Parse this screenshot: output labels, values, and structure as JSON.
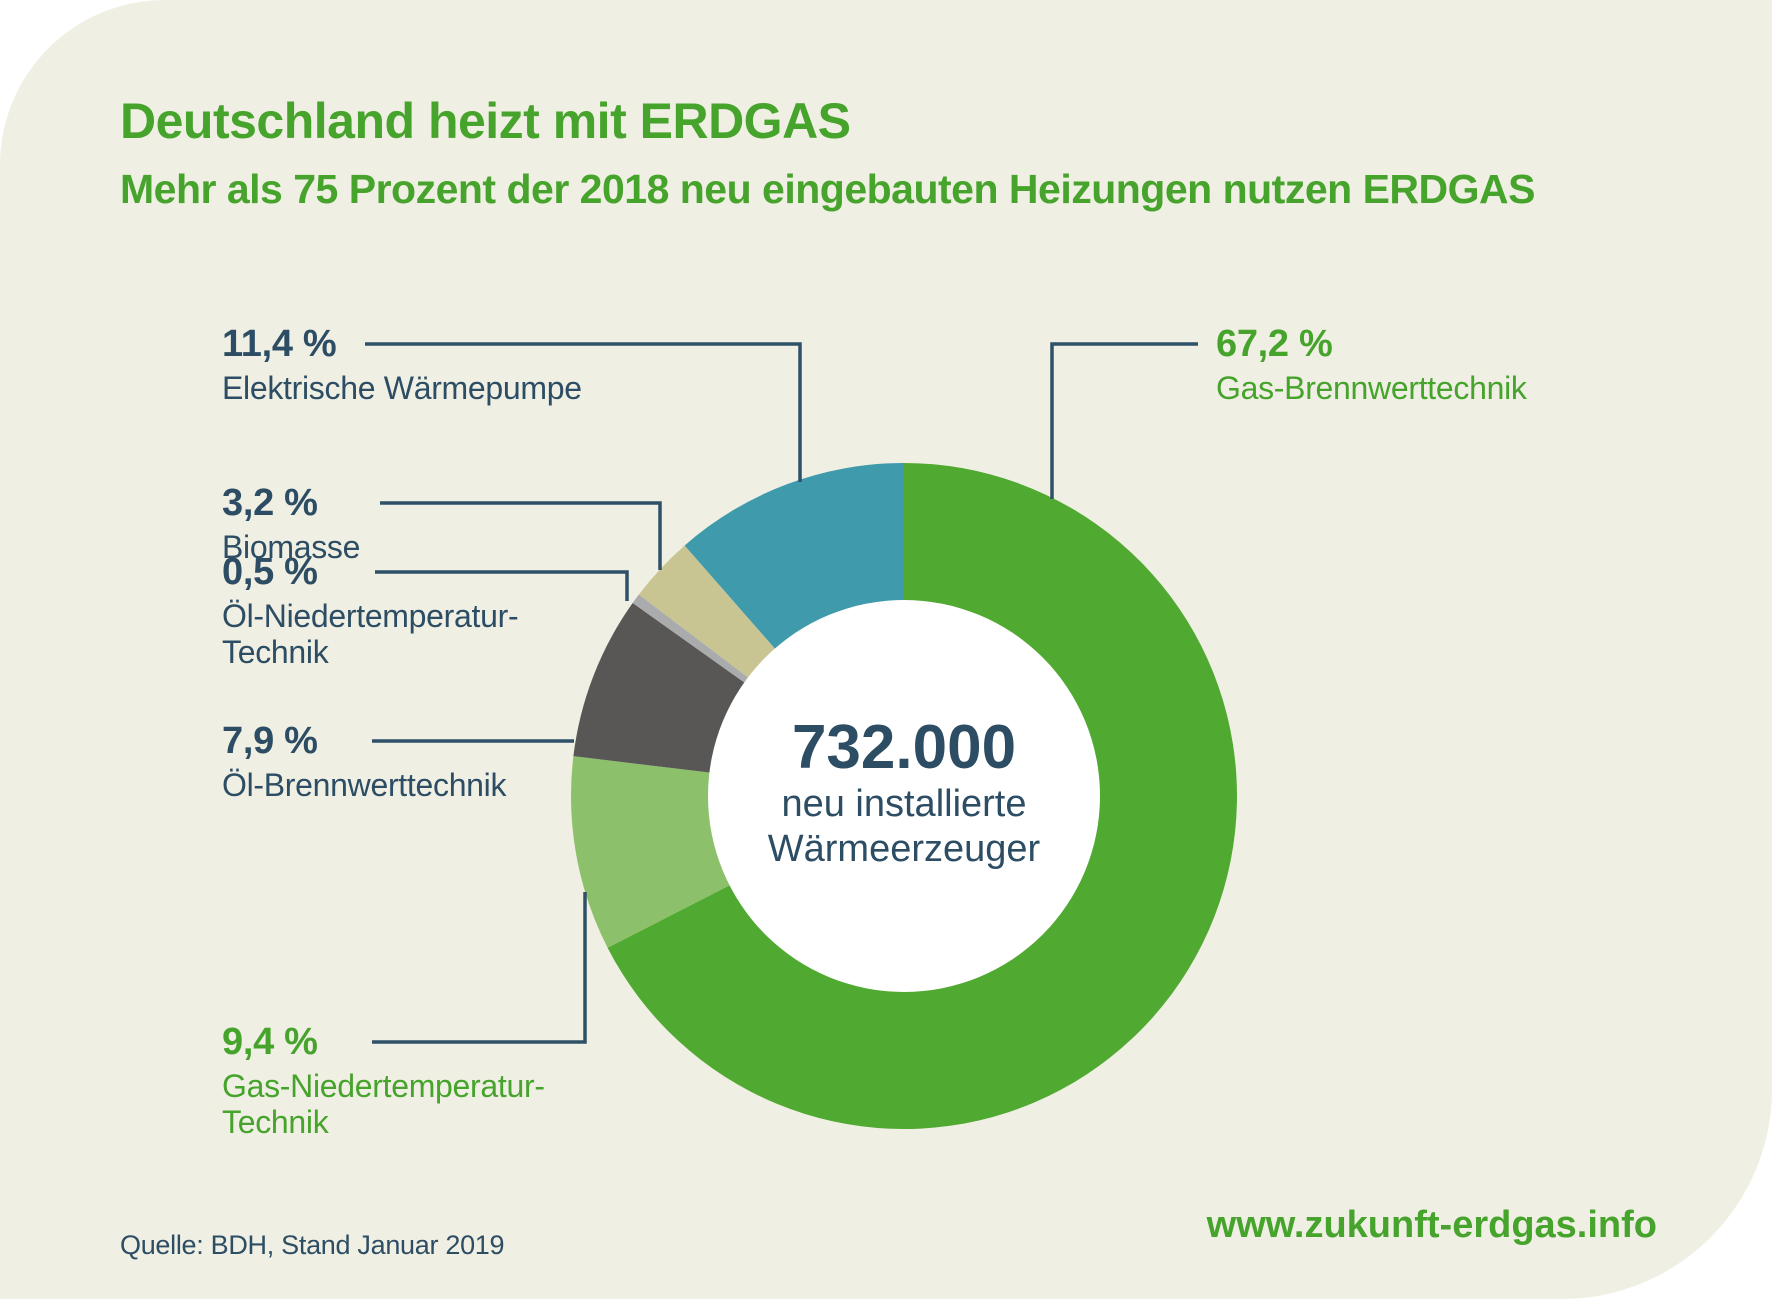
{
  "header": {
    "title": "Deutschland heizt mit ERDGAS",
    "subtitle": "Mehr als 75 Prozent der 2018 neu eingebauten Heizungen nutzen ERDGAS"
  },
  "colors": {
    "card_bg": "#f0efe4",
    "green_accent": "#46a32b",
    "navy_text": "#2c4d63",
    "leader_line": "#2e5168",
    "donut_hole": "#ffffff"
  },
  "chart_data": {
    "type": "pie",
    "subtype": "donut",
    "start_angle": "top",
    "direction": "clockwise",
    "center_value": "732.000",
    "center_label_lines": [
      "neu installierte",
      "Wärmeerzeuger"
    ],
    "segments": [
      {
        "label": "Gas-Brennwerttechnik",
        "value": 67.2,
        "pct_label": "67,2 %",
        "color": "#50a930"
      },
      {
        "label": "Gas-Niedertemperatur-Technik",
        "label_lines": [
          "Gas-Niedertemperatur-",
          "Technik"
        ],
        "value": 9.4,
        "pct_label": "9,4 %",
        "color": "#8cc06a"
      },
      {
        "label": "Öl-Brennwerttechnik",
        "value": 7.9,
        "pct_label": "7,9 %",
        "color": "#585756"
      },
      {
        "label": "Öl-Niedertemperatur-Technik",
        "label_lines": [
          "Öl-Niedertemperatur-",
          "Technik"
        ],
        "value": 0.5,
        "pct_label": "0,5 %",
        "color": "#aaabac"
      },
      {
        "label": "Biomasse",
        "value": 3.2,
        "pct_label": "3,2 %",
        "color": "#c9c593"
      },
      {
        "label": "Elektrische Wärmepumpe",
        "value": 11.4,
        "pct_label": "11,4 %",
        "color": "#3f9aac"
      }
    ]
  },
  "footer": {
    "source": "Quelle: BDH, Stand Januar 2019",
    "website": "www.zukunft-erdgas.info"
  }
}
